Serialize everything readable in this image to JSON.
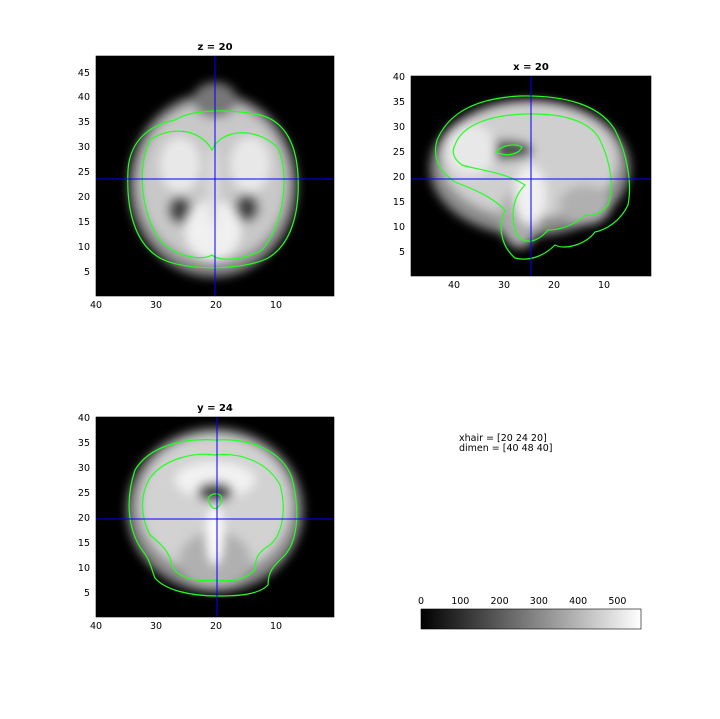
{
  "chart_data": [
    {
      "type": "heatmap",
      "title": "z = 20",
      "x_ticks": [
        40,
        30,
        20,
        10
      ],
      "y_ticks": [
        5,
        10,
        15,
        20,
        25,
        30,
        35,
        40,
        45
      ],
      "xlim": [
        0,
        40
      ],
      "ylim": [
        0,
        48
      ],
      "crosshair": {
        "x": 20,
        "y": 24
      },
      "colormap": "gray"
    },
    {
      "type": "heatmap",
      "title": "x = 20",
      "x_ticks": [
        40,
        30,
        20,
        10
      ],
      "y_ticks": [
        5,
        10,
        15,
        20,
        25,
        30,
        35,
        40
      ],
      "xlim": [
        0,
        48
      ],
      "ylim": [
        0,
        40
      ],
      "crosshair": {
        "x": 24,
        "y": 20
      },
      "colormap": "gray"
    },
    {
      "type": "heatmap",
      "title": "y = 24",
      "x_ticks": [
        40,
        30,
        20,
        10
      ],
      "y_ticks": [
        5,
        10,
        15,
        20,
        25,
        30,
        35,
        40
      ],
      "xlim": [
        0,
        40
      ],
      "ylim": [
        0,
        40
      ],
      "crosshair": {
        "x": 20,
        "y": 20
      },
      "colormap": "gray"
    }
  ],
  "info": {
    "xhair": "xhair = [20 24 20]",
    "dimen": "dimen = [40 48 40]"
  },
  "colorbar": {
    "ticks": [
      0,
      100,
      200,
      300,
      400,
      500
    ],
    "range": [
      0,
      560
    ],
    "colormap": "gray"
  },
  "colors": {
    "crosshair": "#0000ff",
    "contour": "#22ff22",
    "background": "#000000"
  }
}
